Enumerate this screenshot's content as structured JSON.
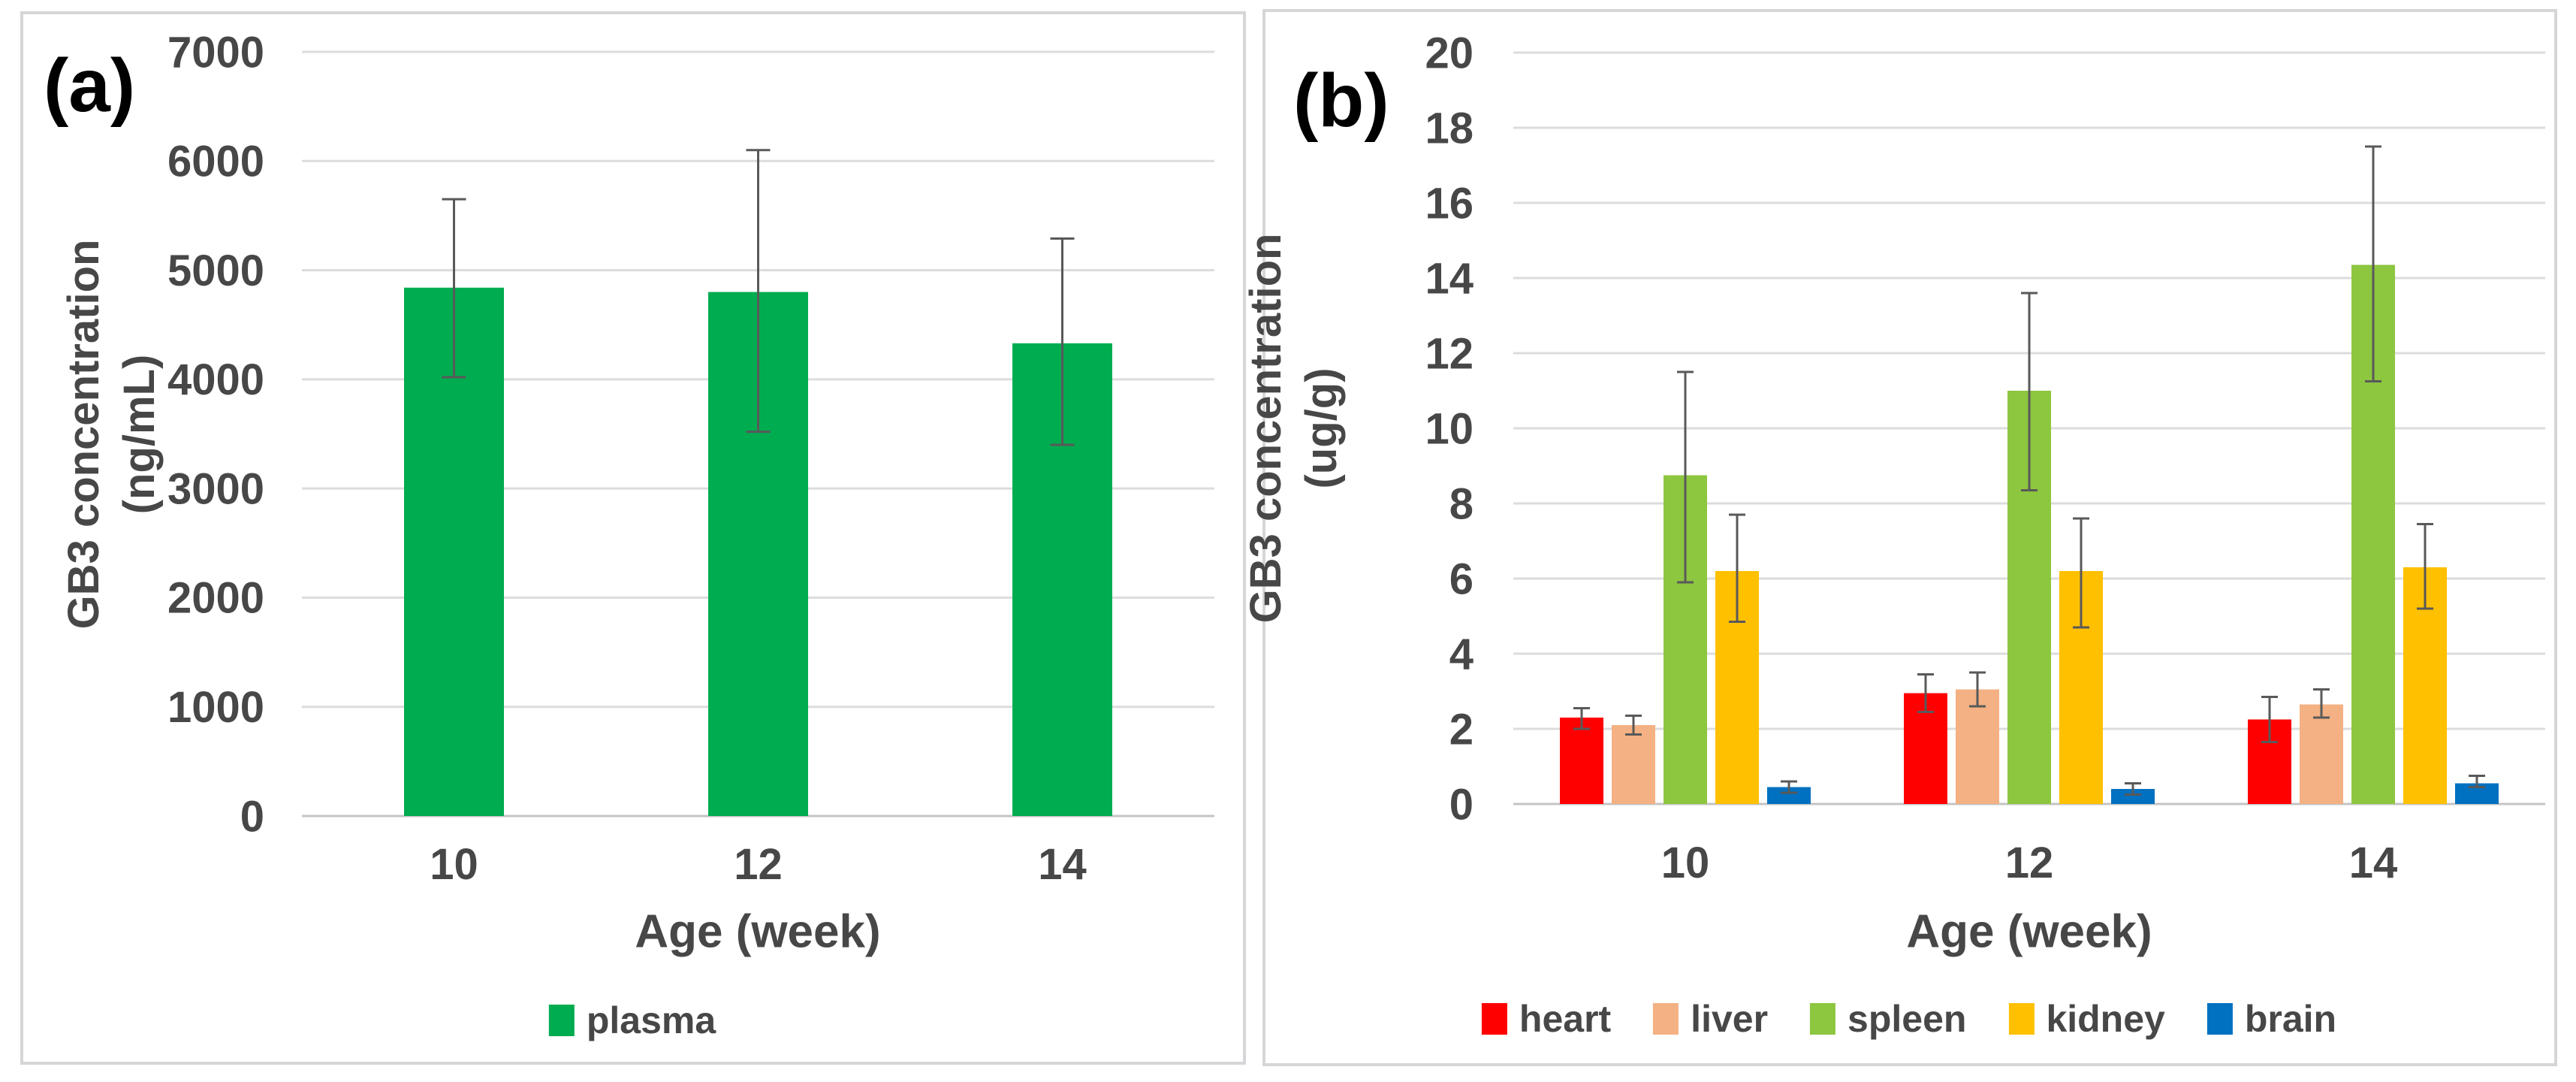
{
  "chart_data": [
    {
      "id": "a",
      "panel_label": "(a)",
      "type": "bar",
      "categories": [
        "10",
        "12",
        "14"
      ],
      "series": [
        {
          "name": "plasma",
          "color": "#00AC50",
          "values": [
            4840,
            4800,
            4330
          ],
          "error_low": [
            4020,
            3520,
            3400
          ],
          "error_high": [
            5650,
            6100,
            5290
          ]
        }
      ],
      "xlabel": "Age (week)",
      "ylabel_line1": "GB3 concentration",
      "ylabel_line2": "(ng/mL)",
      "ylim": [
        0,
        7000
      ],
      "ytick_step": 1000,
      "ytick_labels": [
        "0",
        "1000",
        "2000",
        "3000",
        "4000",
        "5000",
        "6000",
        "7000"
      ],
      "grid": true,
      "legend_position": "bottom"
    },
    {
      "id": "b",
      "panel_label": "(b)",
      "type": "bar",
      "categories": [
        "10",
        "12",
        "14"
      ],
      "series": [
        {
          "name": "heart",
          "color": "#FF0000",
          "values": [
            2.3,
            2.95,
            2.25
          ],
          "error_low": [
            2.0,
            2.45,
            1.65
          ],
          "error_high": [
            2.55,
            3.45,
            2.85
          ]
        },
        {
          "name": "liver",
          "color": "#F4B183",
          "values": [
            2.1,
            3.05,
            2.65
          ],
          "error_low": [
            1.85,
            2.6,
            2.3
          ],
          "error_high": [
            2.35,
            3.5,
            3.05
          ]
        },
        {
          "name": "spleen",
          "color": "#8DC63F",
          "values": [
            8.75,
            11.0,
            14.35
          ],
          "error_low": [
            5.9,
            8.35,
            11.25
          ],
          "error_high": [
            11.5,
            13.6,
            17.5
          ]
        },
        {
          "name": "kidney",
          "color": "#FFC000",
          "values": [
            6.2,
            6.2,
            6.3
          ],
          "error_low": [
            4.85,
            4.7,
            5.2
          ],
          "error_high": [
            7.7,
            7.6,
            7.45
          ]
        },
        {
          "name": "brain",
          "color": "#0070C0",
          "values": [
            0.45,
            0.4,
            0.55
          ],
          "error_low": [
            0.3,
            0.25,
            0.45
          ],
          "error_high": [
            0.6,
            0.55,
            0.75
          ]
        }
      ],
      "xlabel": "Age (week)",
      "ylabel_line1": "GB3 concentration",
      "ylabel_line2": "(ug/g)",
      "ylim": [
        0,
        20
      ],
      "ytick_step": 2,
      "ytick_labels": [
        "0",
        "2",
        "4",
        "6",
        "8",
        "10",
        "12",
        "14",
        "16",
        "18",
        "20"
      ],
      "grid": true,
      "legend_position": "bottom"
    }
  ]
}
